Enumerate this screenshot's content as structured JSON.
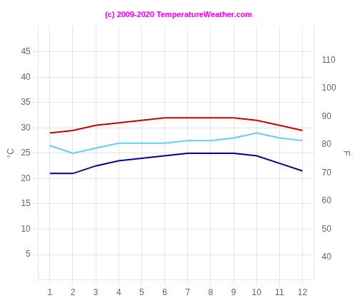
{
  "chart_data": {
    "type": "line",
    "x": [
      1,
      2,
      3,
      4,
      5,
      6,
      7,
      8,
      9,
      10,
      11,
      12
    ],
    "series": [
      {
        "color": "#cc0000",
        "values": [
          29,
          29.5,
          30.5,
          31,
          31.5,
          32,
          32,
          32,
          32,
          31.5,
          30.5,
          29.5
        ]
      },
      {
        "color": "#66ccee",
        "values": [
          26.5,
          25,
          26,
          27,
          27,
          27,
          27.5,
          27.5,
          28,
          29,
          28,
          27.5
        ]
      },
      {
        "color": "#000088",
        "values": [
          21,
          21,
          22.5,
          23.5,
          24,
          24.5,
          25,
          25,
          25,
          24.5,
          23,
          21.5
        ]
      }
    ],
    "xlim": [
      0.5,
      12.5
    ],
    "xticks": [
      1,
      2,
      3,
      4,
      5,
      6,
      7,
      8,
      9,
      10,
      11,
      12
    ],
    "ylim": [
      0,
      50
    ],
    "yticks": [
      5,
      10,
      15,
      20,
      25,
      30,
      35,
      40,
      45
    ],
    "y2lim": [
      32,
      122
    ],
    "y2ticks": [
      40,
      50,
      60,
      70,
      80,
      90,
      100,
      110
    ],
    "ylabel": "°C",
    "y2label": "F",
    "annotations": [
      {
        "text": "(c) 2009-2020 TemperatureWeather.com",
        "color": "#ff00ff"
      }
    ],
    "grid": true
  }
}
